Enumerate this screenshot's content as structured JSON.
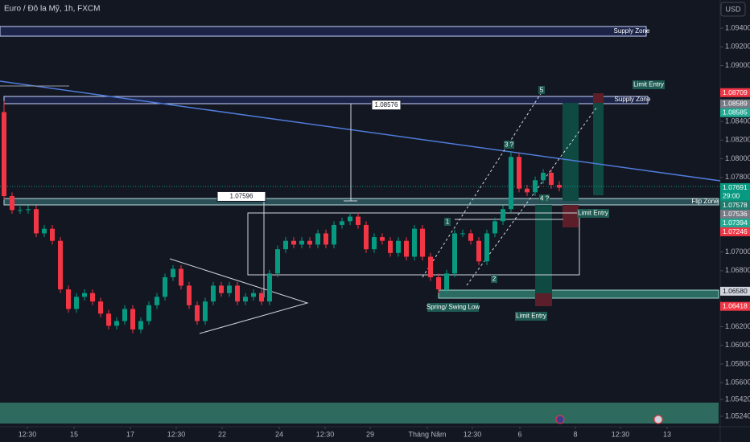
{
  "chart_data": {
    "type": "candlestick",
    "title": "Euro / Đô la Mỹ, 1h, FXCM",
    "currency": "USD",
    "up_color": "#089981",
    "down_color": "#f23645",
    "x": [
      0,
      1,
      2,
      3,
      4,
      5,
      6,
      7,
      8,
      9,
      10,
      11,
      12,
      13,
      14,
      15,
      16,
      17,
      18,
      19,
      20,
      21,
      22,
      23,
      24,
      25,
      26,
      27,
      28,
      29,
      30,
      31,
      32,
      33,
      34,
      35,
      36,
      37,
      38,
      39,
      40,
      41,
      42,
      43,
      44,
      45,
      46,
      47,
      48,
      49,
      50,
      51,
      52,
      53,
      54,
      55,
      56,
      57,
      58,
      59,
      60,
      61,
      62,
      63,
      64,
      65,
      66,
      67,
      68,
      69
    ],
    "open": [
      1.085,
      1.076,
      1.0745,
      1.0745,
      1.0746,
      1.072,
      1.0725,
      1.0712,
      1.066,
      1.0639,
      1.0652,
      1.0656,
      1.0647,
      1.0634,
      1.0621,
      1.0626,
      1.0639,
      1.0617,
      1.0626,
      1.0643,
      1.0652,
      1.0673,
      1.0682,
      1.0664,
      1.0643,
      1.0626,
      1.0647,
      1.0664,
      1.0656,
      1.0664,
      1.0647,
      1.0652,
      1.0656,
      1.0647,
      1.0677,
      1.0703,
      1.0712,
      1.0708,
      1.0712,
      1.0708,
      1.072,
      1.0708,
      1.0729,
      1.0733,
      1.0738,
      1.0729,
      1.0703,
      1.0716,
      1.0712,
      1.0699,
      1.0712,
      1.0695,
      1.0725,
      1.0695,
      1.0673,
      1.066,
      1.0677,
      1.072,
      1.072,
      1.0712,
      1.069,
      1.072,
      1.0733,
      1.0746,
      1.0802,
      1.0768,
      1.0764,
      1.0777,
      1.0785,
      1.0772
    ],
    "high": [
      1.0862,
      1.0764,
      1.0749,
      1.075,
      1.075,
      1.0729,
      1.0729,
      1.0716,
      1.0664,
      1.0656,
      1.066,
      1.066,
      1.0651,
      1.0638,
      1.063,
      1.0643,
      1.0643,
      1.063,
      1.0647,
      1.0656,
      1.0677,
      1.0686,
      1.0686,
      1.0668,
      1.0647,
      1.0651,
      1.0668,
      1.0668,
      1.0668,
      1.0668,
      1.0656,
      1.066,
      1.066,
      1.0681,
      1.0707,
      1.0716,
      1.0716,
      1.0716,
      1.0716,
      1.0724,
      1.0724,
      1.0733,
      1.0737,
      1.0742,
      1.0742,
      1.0733,
      1.072,
      1.072,
      1.0716,
      1.0716,
      1.0716,
      1.0729,
      1.0729,
      1.0699,
      1.0677,
      1.0681,
      1.0724,
      1.0724,
      1.0724,
      1.0716,
      1.0724,
      1.0737,
      1.075,
      1.0808,
      1.0806,
      1.0772,
      1.0781,
      1.0789,
      1.0789,
      1.0776
    ],
    "low": [
      1.0756,
      1.0741,
      1.0741,
      1.0741,
      1.0716,
      1.0716,
      1.0708,
      1.0656,
      1.0635,
      1.0635,
      1.0648,
      1.0643,
      1.063,
      1.0617,
      1.0617,
      1.0622,
      1.0613,
      1.0613,
      1.0622,
      1.0639,
      1.0648,
      1.0669,
      1.066,
      1.0639,
      1.0622,
      1.0622,
      1.0643,
      1.0652,
      1.0652,
      1.0643,
      1.0643,
      1.0648,
      1.0643,
      1.0643,
      1.0673,
      1.0699,
      1.0704,
      1.0704,
      1.0704,
      1.0704,
      1.0704,
      1.0704,
      1.0725,
      1.0729,
      1.0725,
      1.0699,
      1.0699,
      1.0708,
      1.0695,
      1.0695,
      1.0691,
      1.0691,
      1.0691,
      1.0669,
      1.0656,
      1.0656,
      1.0673,
      1.0716,
      1.0708,
      1.0686,
      1.0686,
      1.0716,
      1.0729,
      1.0742,
      1.0764,
      1.076,
      1.076,
      1.0773,
      1.0768,
      1.0765
    ],
    "close": [
      1.076,
      1.0745,
      1.0745,
      1.0746,
      1.072,
      1.0725,
      1.0712,
      1.066,
      1.0639,
      1.0652,
      1.0656,
      1.0647,
      1.0634,
      1.0621,
      1.0626,
      1.0639,
      1.0617,
      1.0626,
      1.0643,
      1.0652,
      1.0673,
      1.0682,
      1.0664,
      1.0643,
      1.0626,
      1.0647,
      1.0664,
      1.0656,
      1.0664,
      1.0647,
      1.0652,
      1.0656,
      1.0647,
      1.0677,
      1.0703,
      1.0712,
      1.0708,
      1.0712,
      1.0708,
      1.072,
      1.0708,
      1.0729,
      1.0733,
      1.0738,
      1.0729,
      1.0703,
      1.0716,
      1.0712,
      1.0699,
      1.0712,
      1.0695,
      1.0725,
      1.0695,
      1.0673,
      1.066,
      1.0677,
      1.072,
      1.072,
      1.0712,
      1.069,
      1.072,
      1.0733,
      1.0746,
      1.0802,
      1.0768,
      1.0764,
      1.0777,
      1.0785,
      1.0772,
      1.0769
    ],
    "xlim": [
      -0.5,
      89
    ],
    "ylim": [
      1.05136,
      1.09702
    ],
    "xticks": [
      {
        "value": 2.9,
        "label": "12:30"
      },
      {
        "value": 8.7,
        "label": "15"
      },
      {
        "value": 15.7,
        "label": "17"
      },
      {
        "value": 21.4,
        "label": "12:30"
      },
      {
        "value": 27.1,
        "label": "22"
      },
      {
        "value": 34.2,
        "label": "24"
      },
      {
        "value": 39.9,
        "label": "12:30"
      },
      {
        "value": 45.5,
        "label": "29"
      },
      {
        "value": 52.6,
        "label": "Tháng Năm"
      },
      {
        "value": 58.2,
        "label": "12:30"
      },
      {
        "value": 64.1,
        "label": "6"
      },
      {
        "value": 71,
        "label": "8"
      },
      {
        "value": 76.6,
        "label": "12:30"
      },
      {
        "value": 82.4,
        "label": "13"
      }
    ],
    "yticks": [
      {
        "value": 1.094,
        "label": "1.09400"
      },
      {
        "value": 1.092,
        "label": "1.09200"
      },
      {
        "value": 1.09,
        "label": "1.09000"
      },
      {
        "value": 1.084,
        "label": "1.08400"
      },
      {
        "value": 1.082,
        "label": "1.08200"
      },
      {
        "value": 1.08,
        "label": "1.08000"
      },
      {
        "value": 1.078,
        "label": "1.07800"
      },
      {
        "value": 1.07,
        "label": "1.07000"
      },
      {
        "value": 1.068,
        "label": "1.06800"
      },
      {
        "value": 1.062,
        "label": "1.06200"
      },
      {
        "value": 1.06,
        "label": "1.06000"
      },
      {
        "value": 1.058,
        "label": "1.05800"
      },
      {
        "value": 1.056,
        "label": "1.05600"
      },
      {
        "value": 1.0542,
        "label": "1.05420"
      },
      {
        "value": 1.0524,
        "label": "1.05240"
      }
    ],
    "price_tags": [
      {
        "value": 1.08709,
        "label": "1.08709",
        "color": "#f23645"
      },
      {
        "value": 1.08589,
        "label": "1.08589",
        "color": "#787b86"
      },
      {
        "value": 1.08585,
        "label": "1.08585",
        "color": "#22ab94"
      },
      {
        "value": 1.07691,
        "label": "1.07691",
        "countdown": "29:00",
        "color": "#089981"
      },
      {
        "value": 1.07578,
        "label": "1.07578",
        "color": "#1e7d6e"
      },
      {
        "value": 1.07536,
        "label": "1.07536",
        "color": "#787b86"
      },
      {
        "value": 1.07394,
        "label": "1.07394",
        "color": "#22ab94"
      },
      {
        "value": 1.07246,
        "label": "1.07246",
        "color": "#f23645"
      },
      {
        "value": 1.0658,
        "label": "1.06580",
        "color": "#d1d4dc"
      },
      {
        "value": 1.06418,
        "label": "1.06418",
        "color": "#f23645"
      }
    ],
    "measurements": [
      {
        "value": 1.08576,
        "label": "1.08576"
      },
      {
        "value": 1.07596,
        "label": "1.07596"
      }
    ],
    "annotations": [
      "Supply Zone",
      "Supply Zone",
      "Flip Zone",
      "Limit Entry",
      "Limit Entry",
      "Limit Entry",
      "Spring/ Swing Low",
      "1",
      "2",
      "3 ?",
      "4 ?",
      "5"
    ]
  }
}
